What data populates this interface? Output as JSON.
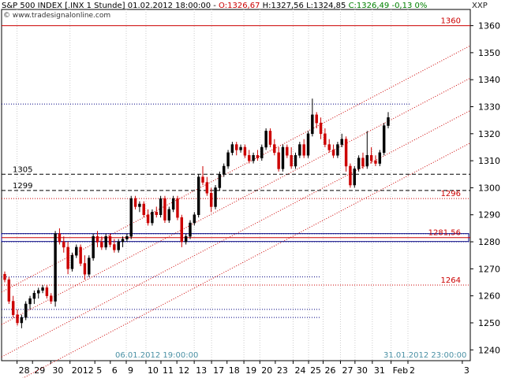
{
  "header": {
    "instrument": "S&P 500 INDEX [.INX  1 Stunde]",
    "datetime": "01.02.2012 18:00:00",
    "open": "O:1326,67",
    "high": "H:1327,56",
    "low": "L:1324,85",
    "close_change": "C:1326,49 -0,13 0%",
    "website": "www.tradesignalonline.com",
    "symbol": "XXP"
  },
  "colors": {
    "bull": "#000000",
    "bear": "#cc0000",
    "red_line": "#cc0000",
    "blue_line": "#000080",
    "grid": "#cccccc"
  },
  "chart_data": {
    "type": "candlestick",
    "interval": "1 hour",
    "ylim": [
      1236,
      1366
    ],
    "y_ticks": [
      1240,
      1250,
      1260,
      1270,
      1280,
      1290,
      1300,
      1310,
      1320,
      1330,
      1340,
      1350,
      1360
    ],
    "x_ticks": [
      "28",
      "29",
      "30",
      "2012",
      "5",
      "6",
      "9",
      "10",
      "11",
      "12",
      "13",
      "17",
      "18",
      "19",
      "20",
      "23",
      "24",
      "25",
      "26",
      "27",
      "30",
      "31",
      "Feb",
      "2",
      "3"
    ],
    "date_markers": [
      "06.01.2012 19:00:00",
      "31.01.2012 23:00:00"
    ],
    "levels": [
      {
        "value": 1360,
        "label": "1360",
        "style": "red-solid",
        "label_side": "right"
      },
      {
        "value": 1305,
        "label": "1305",
        "style": "black-dashed",
        "label_side": "left"
      },
      {
        "value": 1299,
        "label": "1299",
        "style": "black-dashed",
        "label_side": "left"
      },
      {
        "value": 1296,
        "label": "1296",
        "style": "red-dotted",
        "label_side": "right"
      },
      {
        "value": 1281.56,
        "label": "1281,56",
        "style": "red-box",
        "label_side": "right"
      },
      {
        "value": 1264,
        "label": "1264",
        "style": "red-dotted",
        "label_side": "right"
      }
    ],
    "blue_levels": [
      1331,
      1283,
      1280,
      1267,
      1255,
      1252
    ],
    "channel": {
      "slope_per_bar": 0.82,
      "anchor_bar": 0,
      "lines": [
        1262,
        1250,
        1238,
        1226
      ]
    },
    "ohlc": [
      [
        1268,
        1269,
        1265,
        1266
      ],
      [
        1266,
        1267,
        1257,
        1258
      ],
      [
        1258,
        1260,
        1252,
        1253
      ],
      [
        1253,
        1255,
        1249,
        1250
      ],
      [
        1250,
        1253,
        1248,
        1252
      ],
      [
        1252,
        1258,
        1251,
        1257
      ],
      [
        1257,
        1260,
        1255,
        1259
      ],
      [
        1259,
        1262,
        1257,
        1261
      ],
      [
        1261,
        1263,
        1259,
        1262
      ],
      [
        1262,
        1264,
        1261,
        1263
      ],
      [
        1263,
        1264,
        1259,
        1260
      ],
      [
        1260,
        1261,
        1257,
        1258
      ],
      [
        1258,
        1284,
        1256,
        1283
      ],
      [
        1283,
        1285,
        1279,
        1280
      ],
      [
        1280,
        1282,
        1276,
        1278
      ],
      [
        1278,
        1280,
        1268,
        1270
      ],
      [
        1270,
        1276,
        1269,
        1275
      ],
      [
        1275,
        1279,
        1274,
        1278
      ],
      [
        1278,
        1279,
        1271,
        1272
      ],
      [
        1272,
        1275,
        1266,
        1268
      ],
      [
        1268,
        1275,
        1267,
        1274
      ],
      [
        1274,
        1283,
        1273,
        1282
      ],
      [
        1282,
        1284,
        1278,
        1280
      ],
      [
        1280,
        1282,
        1277,
        1278
      ],
      [
        1278,
        1283,
        1277,
        1282
      ],
      [
        1282,
        1283,
        1278,
        1279
      ],
      [
        1279,
        1281,
        1276,
        1277
      ],
      [
        1277,
        1281,
        1276,
        1280
      ],
      [
        1280,
        1282,
        1278,
        1281
      ],
      [
        1281,
        1283,
        1280,
        1282
      ],
      [
        1282,
        1297,
        1281,
        1296
      ],
      [
        1296,
        1297,
        1292,
        1293
      ],
      [
        1293,
        1295,
        1291,
        1294
      ],
      [
        1294,
        1295,
        1289,
        1290
      ],
      [
        1290,
        1292,
        1286,
        1287
      ],
      [
        1287,
        1292,
        1286,
        1291
      ],
      [
        1291,
        1293,
        1289,
        1290
      ],
      [
        1290,
        1297,
        1289,
        1296
      ],
      [
        1296,
        1297,
        1287,
        1288
      ],
      [
        1288,
        1293,
        1287,
        1292
      ],
      [
        1292,
        1297,
        1291,
        1296
      ],
      [
        1296,
        1297,
        1288,
        1289
      ],
      [
        1289,
        1290,
        1278,
        1280
      ],
      [
        1280,
        1283,
        1279,
        1282
      ],
      [
        1282,
        1288,
        1281,
        1287
      ],
      [
        1287,
        1291,
        1286,
        1290
      ],
      [
        1290,
        1305,
        1289,
        1304
      ],
      [
        1304,
        1308,
        1301,
        1302
      ],
      [
        1302,
        1304,
        1297,
        1298
      ],
      [
        1298,
        1300,
        1291,
        1293
      ],
      [
        1293,
        1301,
        1292,
        1300
      ],
      [
        1300,
        1306,
        1299,
        1305
      ],
      [
        1305,
        1309,
        1304,
        1308
      ],
      [
        1308,
        1314,
        1307,
        1313
      ],
      [
        1313,
        1317,
        1312,
        1316
      ],
      [
        1316,
        1317,
        1312,
        1314
      ],
      [
        1314,
        1316,
        1313,
        1315
      ],
      [
        1315,
        1316,
        1311,
        1312
      ],
      [
        1312,
        1314,
        1309,
        1310
      ],
      [
        1310,
        1313,
        1309,
        1312
      ],
      [
        1312,
        1314,
        1310,
        1311
      ],
      [
        1311,
        1316,
        1310,
        1315
      ],
      [
        1315,
        1322,
        1314,
        1321
      ],
      [
        1321,
        1322,
        1315,
        1316
      ],
      [
        1316,
        1318,
        1312,
        1313
      ],
      [
        1313,
        1315,
        1306,
        1307
      ],
      [
        1307,
        1316,
        1306,
        1315
      ],
      [
        1315,
        1316,
        1311,
        1312
      ],
      [
        1312,
        1315,
        1307,
        1308
      ],
      [
        1308,
        1313,
        1307,
        1312
      ],
      [
        1312,
        1317,
        1311,
        1316
      ],
      [
        1316,
        1318,
        1311,
        1312
      ],
      [
        1312,
        1321,
        1311,
        1320
      ],
      [
        1320,
        1333,
        1319,
        1327
      ],
      [
        1327,
        1328,
        1322,
        1324
      ],
      [
        1324,
        1326,
        1318,
        1320
      ],
      [
        1320,
        1322,
        1315,
        1316
      ],
      [
        1316,
        1318,
        1313,
        1314
      ],
      [
        1314,
        1316,
        1311,
        1312
      ],
      [
        1312,
        1317,
        1311,
        1316
      ],
      [
        1316,
        1320,
        1315,
        1318
      ],
      [
        1318,
        1319,
        1306,
        1308
      ],
      [
        1308,
        1309,
        1300,
        1301
      ],
      [
        1301,
        1308,
        1300,
        1307
      ],
      [
        1307,
        1312,
        1306,
        1311
      ],
      [
        1311,
        1313,
        1307,
        1308
      ],
      [
        1308,
        1321,
        1307,
        1312
      ],
      [
        1312,
        1315,
        1309,
        1310
      ],
      [
        1310,
        1312,
        1308,
        1309
      ],
      [
        1309,
        1314,
        1308,
        1313
      ],
      [
        1313,
        1324,
        1312,
        1323
      ],
      [
        1323,
        1328,
        1322,
        1326
      ]
    ]
  }
}
